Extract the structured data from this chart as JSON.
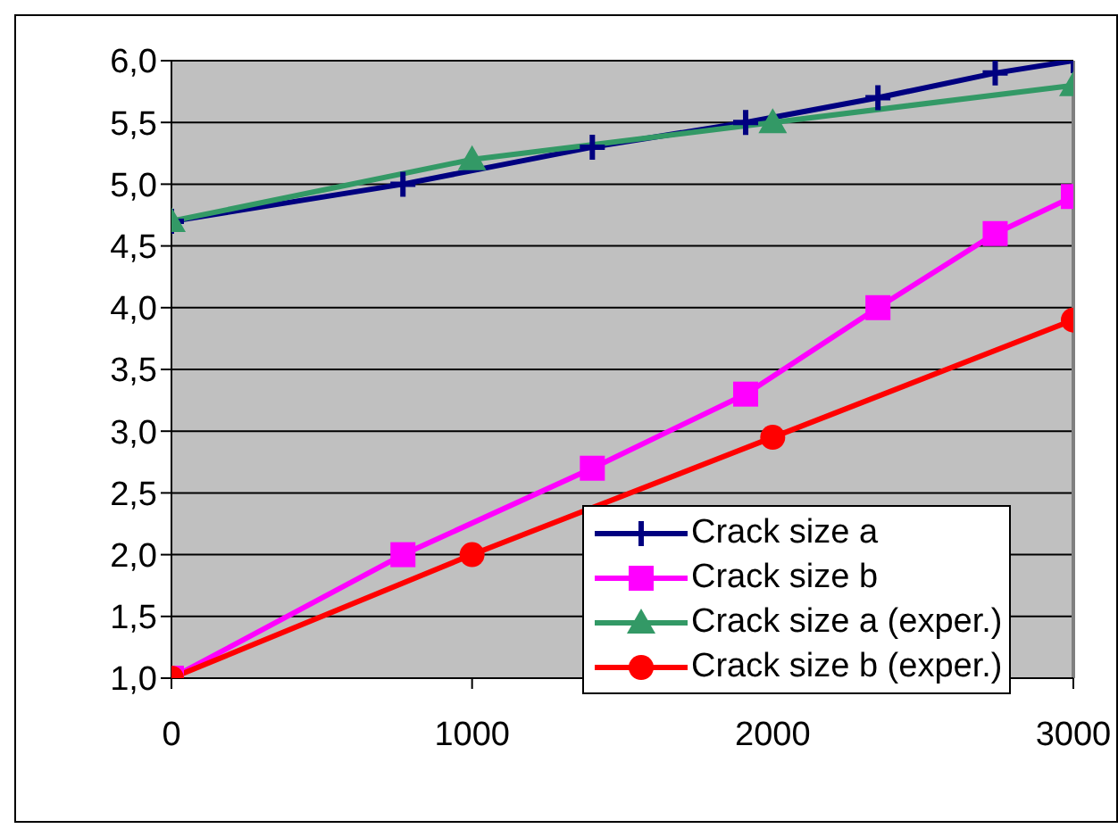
{
  "chart_data": {
    "type": "line",
    "xlim": [
      0,
      3000
    ],
    "xticks": [
      0,
      1000,
      2000,
      3000
    ],
    "ylim": [
      1,
      6
    ],
    "yticks": [
      {
        "value": 1,
        "label": "1,0"
      },
      {
        "value": 1.5,
        "label": "1,5"
      },
      {
        "value": 2,
        "label": "2,0"
      },
      {
        "value": 2.5,
        "label": "2,5"
      },
      {
        "value": 3,
        "label": "3,0"
      },
      {
        "value": 3.5,
        "label": "3,5"
      },
      {
        "value": 4,
        "label": "4,0"
      },
      {
        "value": 4.5,
        "label": "4,5"
      },
      {
        "value": 5,
        "label": "5,0"
      },
      {
        "value": 5.5,
        "label": "5,5"
      },
      {
        "value": 6,
        "label": "6,0"
      }
    ],
    "grid": "y",
    "legend": "bottom right",
    "line_style": "solid",
    "series": [
      {
        "name": "Crack size a",
        "color": "#000080",
        "marker": "cross",
        "x": [
          0,
          770,
          1400,
          1910,
          2350,
          2740,
          3000
        ],
        "values": [
          4.7,
          5.0,
          5.3,
          5.5,
          5.7,
          5.9,
          6.0
        ]
      },
      {
        "name": "Crack size b",
        "color": "#ff00ff",
        "marker": "square",
        "x": [
          0,
          770,
          1400,
          1910,
          2350,
          2740,
          3000
        ],
        "values": [
          1.0,
          2.0,
          2.7,
          3.3,
          4.0,
          4.6,
          4.9
        ]
      },
      {
        "name": "Crack size a (exper.)",
        "color": "#339966",
        "marker": "triangle",
        "x": [
          0,
          1000,
          2000,
          3000
        ],
        "values": [
          4.7,
          5.2,
          5.5,
          5.8
        ]
      },
      {
        "name": "Crack size b (exper.)",
        "color": "#ff0000",
        "marker": "circle",
        "x": [
          0,
          1000,
          2000,
          3000
        ],
        "values": [
          1.0,
          2.0,
          2.95,
          3.9
        ]
      }
    ]
  }
}
